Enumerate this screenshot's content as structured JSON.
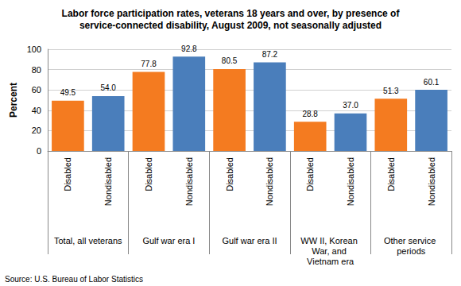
{
  "chart_data": {
    "type": "bar",
    "title": "Labor force participation rates, veterans 18 years and over, by presence of\nservice-connected disability, August 2009, not seasonally adjusted",
    "y_label": "Percent",
    "source": "Source: U.S. Bureau of Labor Statistics",
    "categories": [
      "Total, all veterans",
      "Gulf war era I",
      "Gulf war era II",
      "WW II, Korean War, and Vietnam era",
      "Other service periods"
    ],
    "series": [
      {
        "name": "Disabled",
        "color": "#f47b20",
        "values": [
          49.5,
          77.8,
          80.5,
          28.8,
          51.3
        ],
        "value_labels": [
          "49.5",
          "77.8",
          "80.5",
          "28.8",
          "51.3"
        ]
      },
      {
        "name": "Nondisabled",
        "color": "#4a7ebb",
        "values": [
          54.0,
          92.8,
          87.2,
          37.0,
          60.1
        ],
        "value_labels": [
          "54.0",
          "92.8",
          "87.2",
          "37.0",
          "60.1"
        ]
      }
    ],
    "ylim": [
      0,
      100
    ],
    "yticks": [
      0,
      20,
      40,
      60,
      80,
      100
    ],
    "grid": true,
    "data_labels": true
  }
}
